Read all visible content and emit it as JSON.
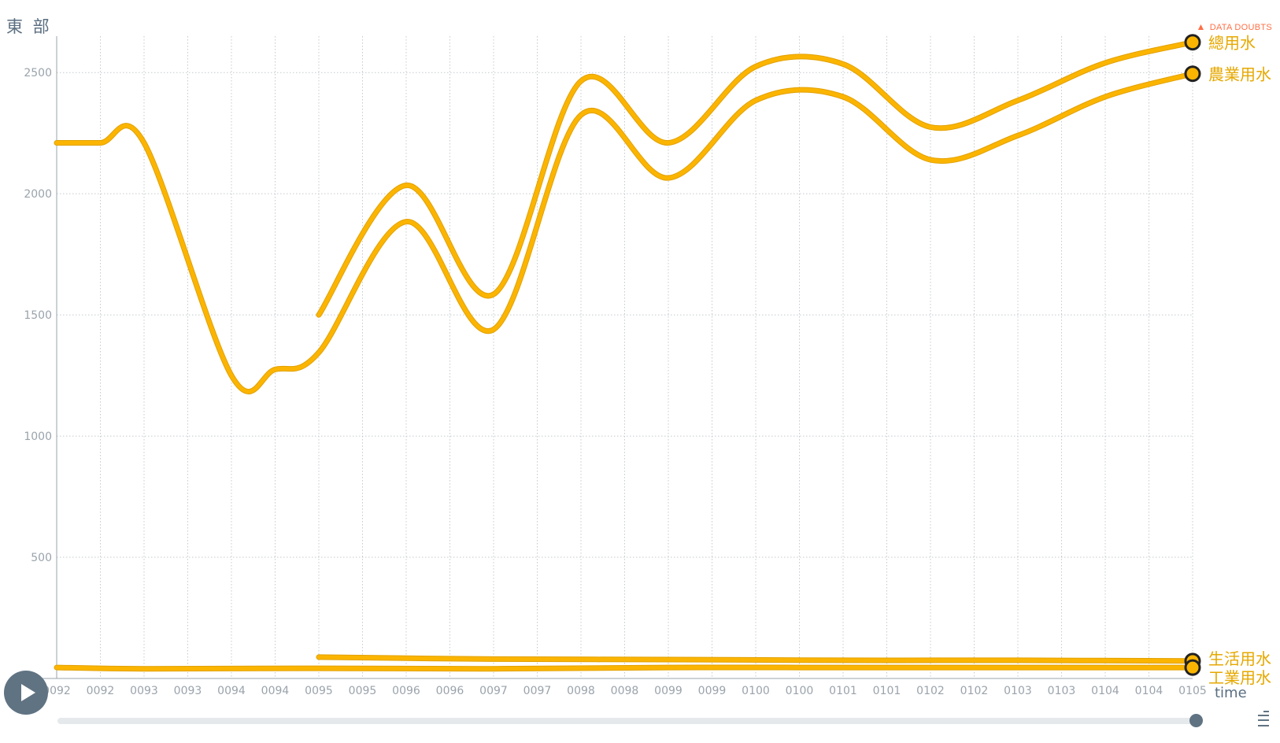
{
  "chart_data": {
    "type": "line",
    "y_title": "東 部",
    "xlabel": "time",
    "x_tick_labels": [
      "0092",
      "0092",
      "0093",
      "0093",
      "0094",
      "0094",
      "0095",
      "0095",
      "0096",
      "0096",
      "0097",
      "0097",
      "0098",
      "0098",
      "0099",
      "0099",
      "0100",
      "0100",
      "0101",
      "0101",
      "0102",
      "0102",
      "0103",
      "0103",
      "0104",
      "0104",
      "0105"
    ],
    "xlim": [
      92,
      105
    ],
    "ylim": [
      0,
      2650
    ],
    "y_ticks": [
      500,
      1000,
      1500,
      2000,
      2500
    ],
    "grid": true,
    "line_color": "#fbb500",
    "line_edge_color": "#e2a000",
    "series": [
      {
        "name": "總用水",
        "x": [
          95,
          96,
          97,
          98,
          99,
          100,
          101,
          102,
          103,
          104,
          105
        ],
        "y": [
          1500,
          2035,
          1585,
          2465,
          2210,
          2525,
          2535,
          2275,
          2385,
          2540,
          2625
        ]
      },
      {
        "name": "農業用水",
        "x": [
          92,
          92.5,
          93,
          94,
          94.5,
          95,
          96,
          97,
          98,
          99,
          100,
          101,
          102,
          103,
          104,
          105
        ],
        "y": [
          2210,
          2210,
          2210,
          1250,
          1275,
          1345,
          1885,
          1440,
          2325,
          2065,
          2385,
          2400,
          2140,
          2240,
          2400,
          2495
        ]
      },
      {
        "name": "生活用水",
        "x": [
          95,
          97,
          99,
          101,
          103,
          105
        ],
        "y": [
          88,
          80,
          78,
          75,
          75,
          72
        ]
      },
      {
        "name": "工業用水",
        "x": [
          92,
          93,
          95,
          97,
          99,
          101,
          103,
          105
        ],
        "y": [
          45,
          40,
          42,
          40,
          45,
          45,
          45,
          45
        ]
      }
    ],
    "data_doubts_label": "DATA DOUBTS"
  }
}
